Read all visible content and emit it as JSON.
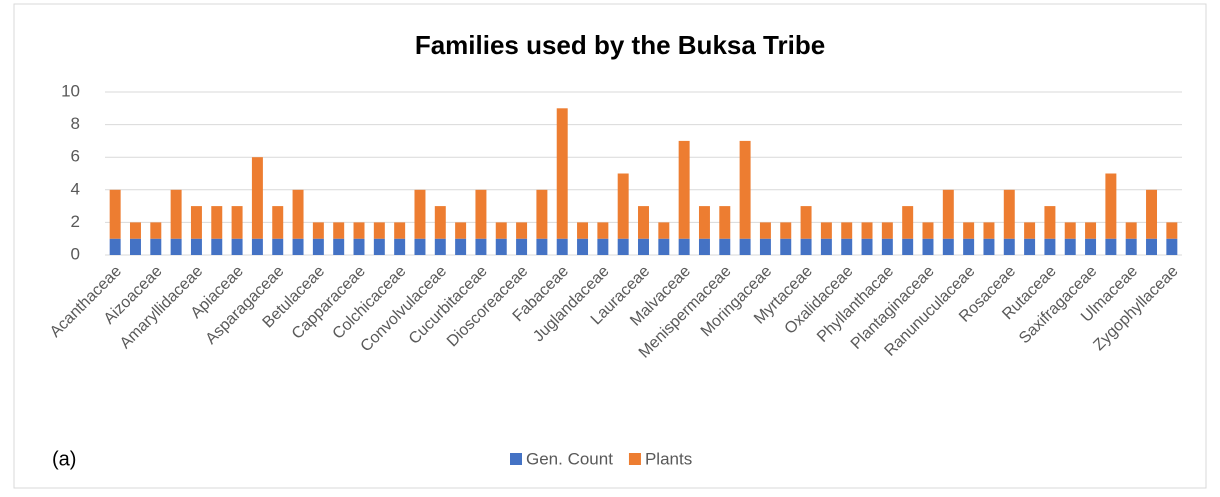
{
  "chart_data": {
    "type": "stacked_bar",
    "title": "Families used by the Buksa Tribe",
    "annotation": "(a)",
    "categories": [
      "Acanthaceae",
      null,
      "Aizoaceae",
      null,
      "Amaryllidaceae",
      null,
      "Apiaceae",
      null,
      "Asparagaceae",
      null,
      "Betulaceae",
      null,
      "Capparaceae",
      null,
      "Colchicaceae",
      null,
      "Convolvulaceae",
      null,
      "Cucurbitaceae",
      null,
      "Dioscoreaceae",
      null,
      "Fabaceae",
      null,
      "Juglandaceae",
      null,
      "Lauraceae",
      null,
      "Malvaceae",
      null,
      "Menispermaceae",
      null,
      "Moringaceae",
      null,
      "Myrtaceae",
      null,
      "Oxalidaceae",
      null,
      "Phyllanthacae",
      null,
      "Plantaginaceae",
      null,
      "Ranunuculaceae",
      null,
      "Rosaceae",
      null,
      "Rutaceae",
      null,
      "Saxifragaceae",
      null,
      "Ulmaceae",
      null,
      "Zygophyllaceae"
    ],
    "series": [
      {
        "name": "Gen. Count",
        "color": "#4472c4",
        "values": [
          1,
          1,
          1,
          1,
          1,
          1,
          1,
          1,
          1,
          1,
          1,
          1,
          1,
          1,
          1,
          1,
          1,
          1,
          1,
          1,
          1,
          1,
          1,
          1,
          1,
          1,
          1,
          1,
          1,
          1,
          1,
          1,
          1,
          1,
          1,
          1,
          1,
          1,
          1,
          1,
          1,
          1,
          1,
          1,
          1,
          1,
          1,
          1,
          1,
          1,
          1,
          1,
          1
        ]
      },
      {
        "name": "Plants",
        "color": "#ed7d31",
        "values": [
          3,
          1,
          1,
          3,
          2,
          2,
          2,
          5,
          2,
          3,
          1,
          1,
          1,
          1,
          1,
          3,
          2,
          1,
          3,
          1,
          1,
          3,
          8,
          1,
          1,
          4,
          2,
          1,
          6,
          2,
          2,
          6,
          1,
          1,
          2,
          1,
          1,
          1,
          1,
          2,
          1,
          3,
          1,
          1,
          3,
          1,
          2,
          1,
          1,
          4,
          1,
          3,
          1
        ]
      }
    ],
    "ylim": [
      0,
      10
    ],
    "yticks": [
      0,
      2,
      4,
      6,
      8,
      10
    ],
    "grid": true,
    "legend": "bottom"
  }
}
